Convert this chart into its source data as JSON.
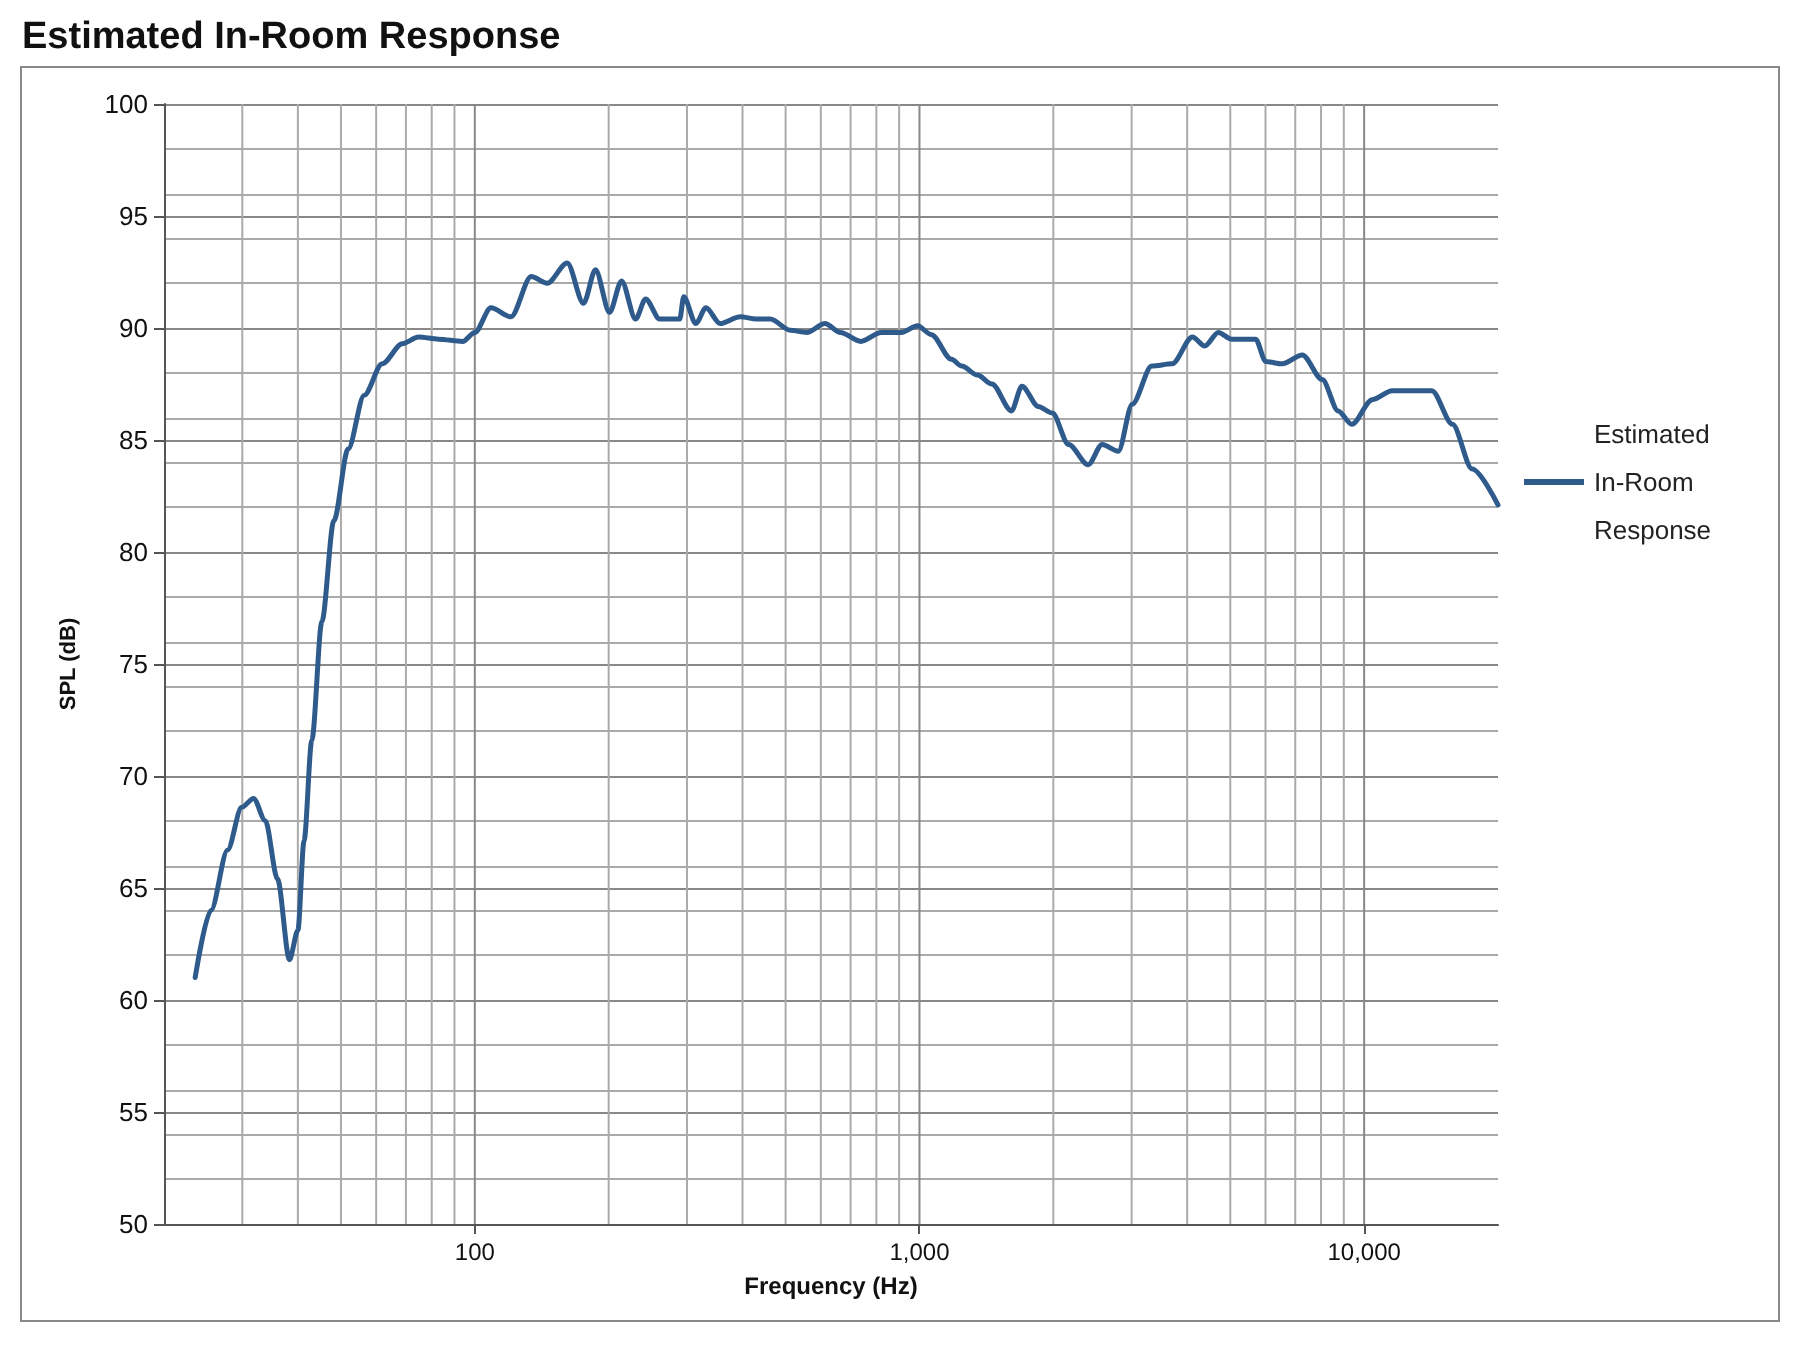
{
  "chart_data": {
    "type": "line",
    "title": "Estimated In-Room Response",
    "xlabel": "Frequency (Hz)",
    "ylabel": "SPL (dB)",
    "log": "x",
    "grid": true,
    "legend": "right",
    "marker": "none",
    "line_style": "solid",
    "xlim": [
      20,
      20000
    ],
    "xticks": [
      {
        "value": 100,
        "label": "100"
      },
      {
        "value": 1000,
        "label": "1,000"
      },
      {
        "value": 10000,
        "label": "10,000"
      }
    ],
    "ylim": [
      50,
      100
    ],
    "yticks": [
      50,
      55,
      60,
      65,
      70,
      75,
      80,
      85,
      90,
      95,
      100
    ],
    "series": [
      {
        "name": "Estimated In-Room Response",
        "color": "#2e5b8c",
        "x": [
          23.5,
          25.5,
          27.8,
          29.9,
          31.8,
          33.8,
          36,
          38.3,
          40,
          41.3,
          43,
          45.3,
          48.2,
          51.9,
          56.4,
          61.9,
          68.7,
          74.7,
          82.9,
          93.9,
          100,
          108.7,
          120.6,
          133.9,
          145.5,
          161.4,
          175.6,
          186.8,
          200.9,
          213.8,
          229.9,
          242.2,
          260.4,
          289,
          295,
          314,
          331,
          356,
          395,
          430,
          462,
          512,
          558,
          613,
          664,
          738,
          820,
          910,
          990,
          1064,
          1180,
          1245,
          1350,
          1455,
          1610,
          1700,
          1850,
          1990,
          2165,
          2395,
          2575,
          2800,
          3010,
          3330,
          3700,
          4110,
          4380,
          4700,
          5040,
          5700,
          6010,
          6540,
          7260,
          8050,
          8740,
          9380,
          10430,
          11560,
          12800,
          14200,
          15800,
          17500,
          20000
        ],
        "values": [
          61.0,
          64.0,
          66.7,
          68.6,
          69.0,
          68.0,
          65.4,
          61.8,
          63.1,
          67.1,
          71.6,
          76.9,
          81.4,
          84.6,
          87.0,
          88.4,
          89.3,
          89.6,
          89.5,
          89.4,
          89.8,
          90.9,
          90.5,
          92.3,
          92.0,
          92.9,
          91.1,
          92.6,
          90.7,
          92.1,
          90.4,
          91.3,
          90.4,
          90.4,
          91.4,
          90.2,
          90.9,
          90.2,
          90.5,
          90.4,
          90.4,
          89.9,
          89.8,
          90.2,
          89.8,
          89.4,
          89.8,
          89.8,
          90.1,
          89.7,
          88.6,
          88.3,
          87.9,
          87.5,
          86.3,
          87.4,
          86.5,
          86.2,
          84.8,
          83.9,
          84.8,
          84.5,
          86.6,
          88.3,
          88.4,
          89.6,
          89.2,
          89.8,
          89.5,
          89.5,
          88.5,
          88.4,
          88.8,
          87.7,
          86.3,
          85.7,
          86.8,
          87.2,
          87.2,
          87.2,
          85.7,
          83.7,
          82.1
        ]
      }
    ]
  }
}
